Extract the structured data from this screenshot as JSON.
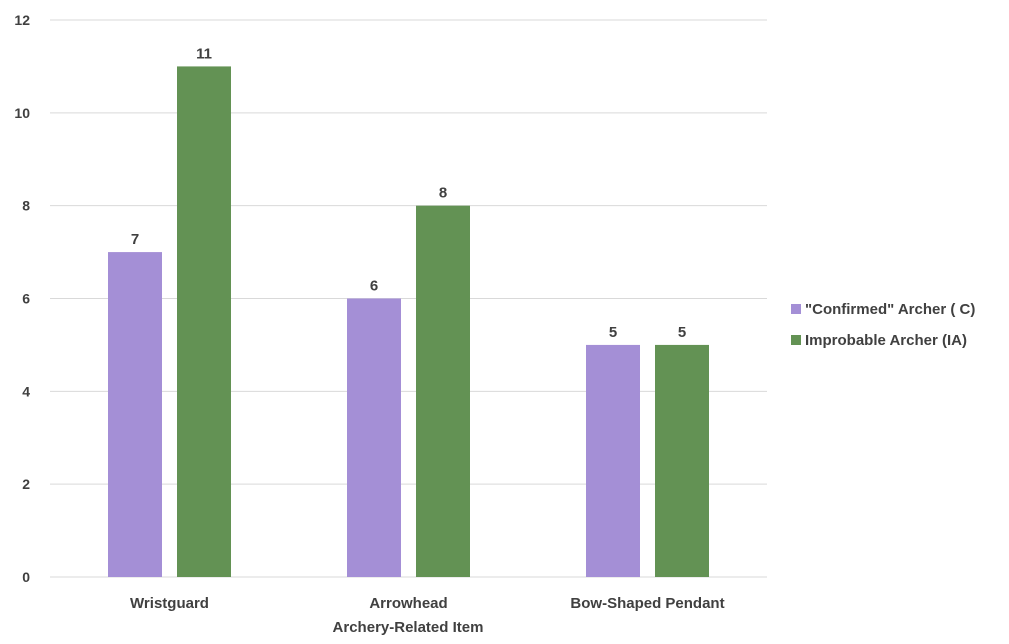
{
  "chart_data": {
    "type": "bar",
    "title": "",
    "xlabel": "Archery-Related Item",
    "ylabel": "",
    "categories": [
      "Wristguard",
      "Arrowhead",
      "Bow-Shaped Pendant"
    ],
    "series": [
      {
        "name": "\"Confirmed\" Archer ( C)",
        "values": [
          7,
          6,
          5
        ],
        "color": "#a48fd6"
      },
      {
        "name": "Improbable Archer (IA)",
        "values": [
          11,
          8,
          5
        ],
        "color": "#639254"
      }
    ],
    "ylim": [
      0,
      12
    ],
    "yticks": [
      0,
      2,
      4,
      6,
      8,
      10,
      12
    ],
    "grid": true,
    "data_labels": true,
    "legend_position": "right",
    "colors": {
      "gridline": "#d9d9d9",
      "text": "#404040"
    }
  }
}
